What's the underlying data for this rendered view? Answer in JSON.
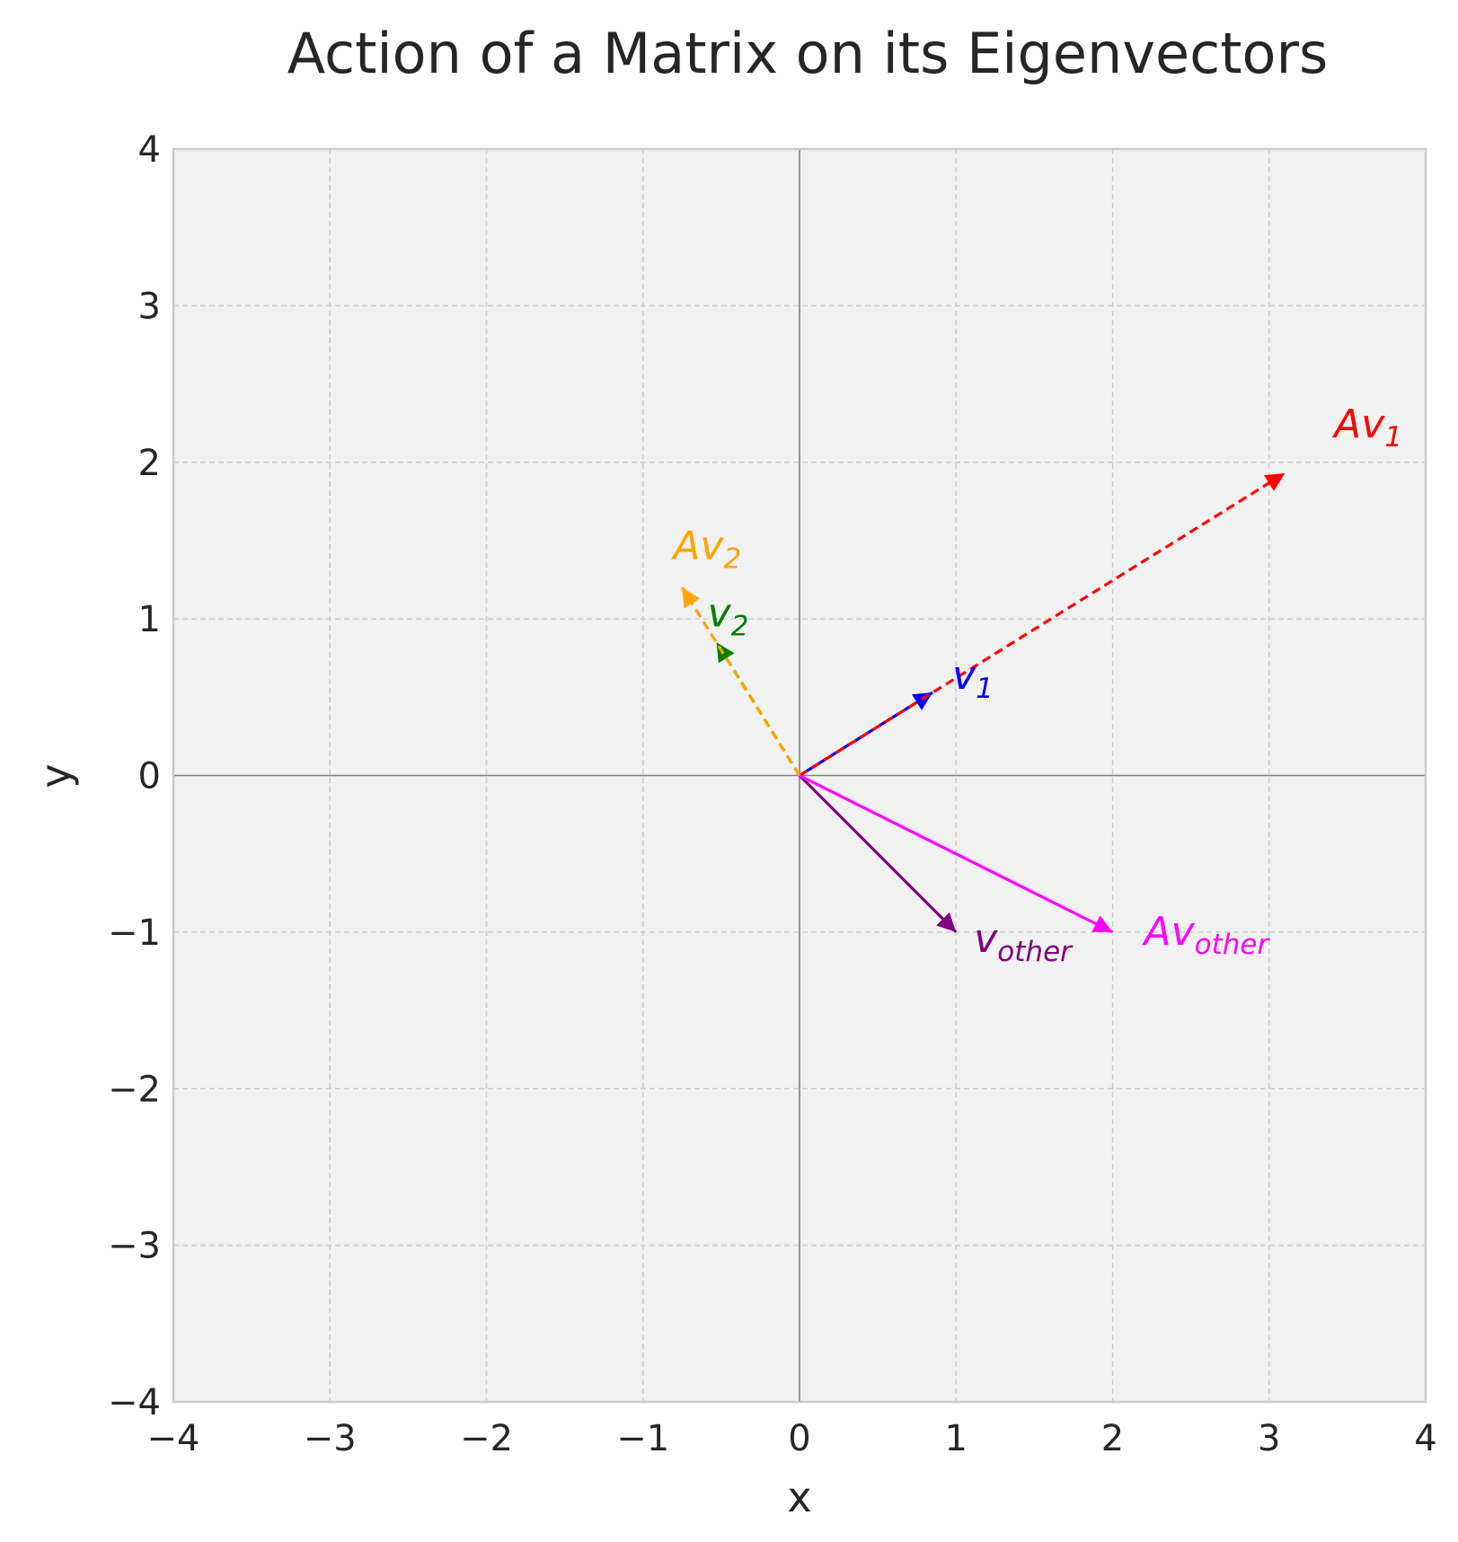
{
  "chart_data": {
    "type": "quiver",
    "title": "Action of a Matrix on its Eigenvectors",
    "xlabel": "x",
    "ylabel": "y",
    "xlim": [
      -4,
      4
    ],
    "ylim": [
      -4,
      4
    ],
    "xticks": [
      -4,
      -3,
      -2,
      -1,
      0,
      1,
      2,
      3,
      4
    ],
    "yticks": [
      -4,
      -3,
      -2,
      -1,
      0,
      1,
      2,
      3,
      4
    ],
    "x_tick_labels": [
      "−4",
      "−3",
      "−2",
      "−1",
      "0",
      "1",
      "2",
      "3",
      "4"
    ],
    "y_tick_labels": [
      "−4",
      "−3",
      "−2",
      "−1",
      "0",
      "1",
      "2",
      "3",
      "4"
    ],
    "grid": true,
    "background": "#f2f2f2",
    "vectors": [
      {
        "id": "v1",
        "label_main": "v",
        "label_sub": "1",
        "x": 0.85,
        "y": 0.53,
        "color": "#0000ff",
        "dashed": false
      },
      {
        "id": "av1",
        "label_main": "Av",
        "label_sub": "1",
        "x": 3.1,
        "y": 1.93,
        "color": "#ff0000",
        "dashed": true
      },
      {
        "id": "v2",
        "label_main": "v",
        "label_sub": "2",
        "x": -0.53,
        "y": 0.85,
        "color": "#008000",
        "dashed": true
      },
      {
        "id": "av2",
        "label_main": "Av",
        "label_sub": "2",
        "x": -0.75,
        "y": 1.2,
        "color": "#ffa500",
        "dashed": true
      },
      {
        "id": "vother",
        "label_main": "v",
        "label_sub": "other",
        "x": 1.0,
        "y": -1.0,
        "color": "#800080",
        "dashed": false
      },
      {
        "id": "avother",
        "label_main": "Av",
        "label_sub": "other",
        "x": 2.0,
        "y": -1.0,
        "color": "#ff00ff",
        "dashed": false
      }
    ]
  }
}
